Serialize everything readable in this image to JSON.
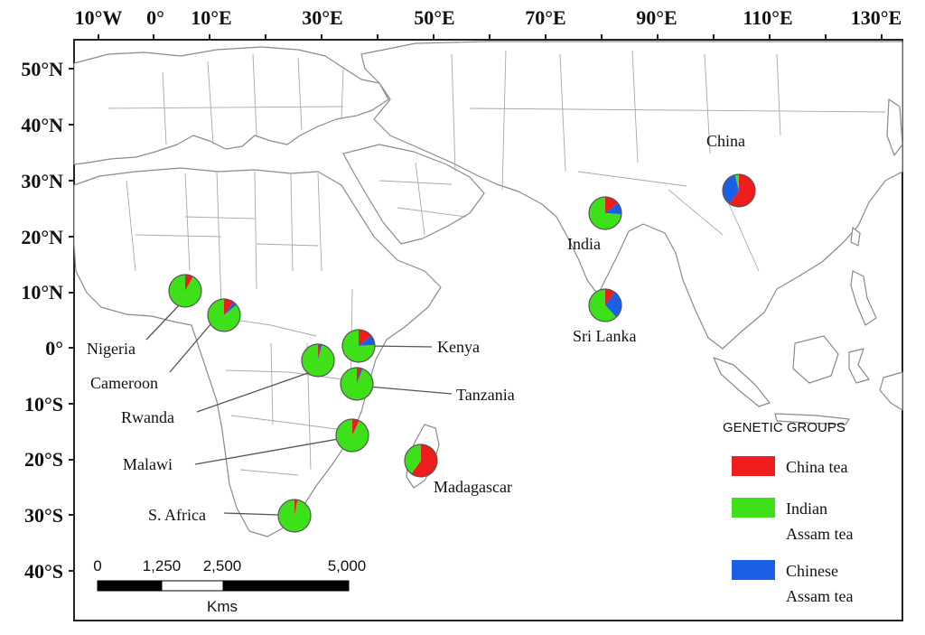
{
  "map": {
    "longitude_ticks": [
      "10°W",
      "0°",
      "10°E",
      "30°E",
      "50°E",
      "70°E",
      "90°E",
      "110°E",
      "130°E"
    ],
    "latitude_ticks": [
      "50°N",
      "40°N",
      "30°N",
      "20°N",
      "10°N",
      "0°",
      "10°S",
      "20°S",
      "30°S",
      "40°S"
    ]
  },
  "sites": [
    {
      "name": "Nigeria",
      "shares": {
        "china": 0.08,
        "indian_assam": 0.92,
        "chinese_assam": 0.0
      }
    },
    {
      "name": "Cameroon",
      "shares": {
        "china": 0.1,
        "indian_assam": 0.86,
        "chinese_assam": 0.04
      }
    },
    {
      "name": "Kenya",
      "shares": {
        "china": 0.14,
        "indian_assam": 0.76,
        "chinese_assam": 0.1
      }
    },
    {
      "name": "Rwanda",
      "shares": {
        "china": 0.02,
        "indian_assam": 0.96,
        "chinese_assam": 0.02
      }
    },
    {
      "name": "Tanzania",
      "shares": {
        "china": 0.04,
        "indian_assam": 0.94,
        "chinese_assam": 0.02
      }
    },
    {
      "name": "Malawi",
      "shares": {
        "china": 0.07,
        "indian_assam": 0.93,
        "chinese_assam": 0.0
      }
    },
    {
      "name": "S. Africa",
      "shares": {
        "china": 0.03,
        "indian_assam": 0.97,
        "chinese_assam": 0.0
      }
    },
    {
      "name": "Madagascar",
      "shares": {
        "china": 0.6,
        "indian_assam": 0.4,
        "chinese_assam": 0.0
      }
    },
    {
      "name": "India",
      "shares": {
        "china": 0.14,
        "indian_assam": 0.74,
        "chinese_assam": 0.12
      }
    },
    {
      "name": "Sri Lanka",
      "shares": {
        "china": 0.1,
        "indian_assam": 0.62,
        "chinese_assam": 0.28
      }
    },
    {
      "name": "China",
      "shares": {
        "china": 0.6,
        "indian_assam": 0.04,
        "chinese_assam": 0.36
      }
    }
  ],
  "legend": {
    "title": "GENETIC GROUPS",
    "items": [
      {
        "key": "china",
        "label_lines": [
          "China tea"
        ],
        "color": "#ee1c1c"
      },
      {
        "key": "indian_assam",
        "label_lines": [
          "Indian",
          "Assam tea"
        ],
        "color": "#3ee01a"
      },
      {
        "key": "chinese_assam",
        "label_lines": [
          "Chinese",
          "Assam tea"
        ],
        "color": "#1a5fe6"
      }
    ]
  },
  "scale_bar": {
    "tick_labels": [
      "0",
      "1,250",
      "2,500",
      "5,000"
    ],
    "unit": "Kms"
  }
}
